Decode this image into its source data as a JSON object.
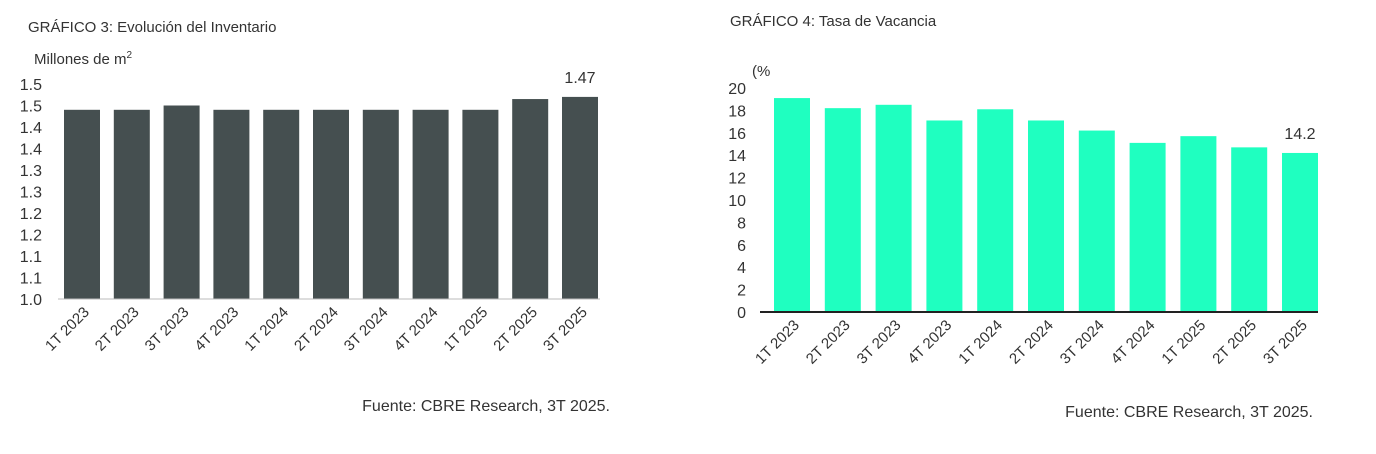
{
  "chart_data": [
    {
      "type": "bar",
      "title": "GRÁFICO 3: Evolución del Inventario",
      "ylabel": "Millones de m",
      "ylabel_sup": "2",
      "categories": [
        "1T 2023",
        "2T 2023",
        "3T 2023",
        "4T 2023",
        "1T 2024",
        "2T 2024",
        "3T 2024",
        "4T 2024",
        "1T 2025",
        "2T 2025",
        "3T 2025"
      ],
      "values": [
        1.44,
        1.44,
        1.45,
        1.44,
        1.44,
        1.44,
        1.44,
        1.44,
        1.44,
        1.465,
        1.47
      ],
      "ylim": [
        1.0,
        1.5
      ],
      "yticks": [
        1.0,
        1.05,
        1.1,
        1.15,
        1.2,
        1.25,
        1.3,
        1.35,
        1.4,
        1.45,
        1.5
      ],
      "ytick_labels": [
        "1.0",
        "1.1",
        "1.1",
        "1.2",
        "1.2",
        "1.3",
        "1.3",
        "1.4",
        "1.4",
        "1.5",
        "1.5"
      ],
      "data_label": {
        "index": 10,
        "text": "1.47"
      },
      "color": "#454f50",
      "source": "Fuente: CBRE Research, 3T 2025.",
      "grid": false
    },
    {
      "type": "bar",
      "title": "GRÁFICO 4: Tasa de Vacancia",
      "ylabel": "(%",
      "categories": [
        "1T 2023",
        "2T 2023",
        "3T 2023",
        "4T 2023",
        "1T 2024",
        "2T 2024",
        "3T 2024",
        "4T 2024",
        "1T 2025",
        "2T 2025",
        "3T 2025"
      ],
      "values": [
        19.1,
        18.2,
        18.5,
        17.1,
        18.1,
        17.1,
        16.2,
        15.1,
        15.7,
        14.7,
        14.2
      ],
      "ylim": [
        0,
        20
      ],
      "yticks": [
        0,
        2,
        4,
        6,
        8,
        10,
        12,
        14,
        16,
        18,
        20
      ],
      "ytick_labels": [
        "0",
        "2",
        "4",
        "6",
        "8",
        "10",
        "12",
        "14",
        "16",
        "18",
        "20"
      ],
      "data_label": {
        "index": 10,
        "text": "14.2"
      },
      "color": "#1fffc0",
      "source": "Fuente: CBRE Research, 3T 2025.",
      "grid": false
    }
  ]
}
